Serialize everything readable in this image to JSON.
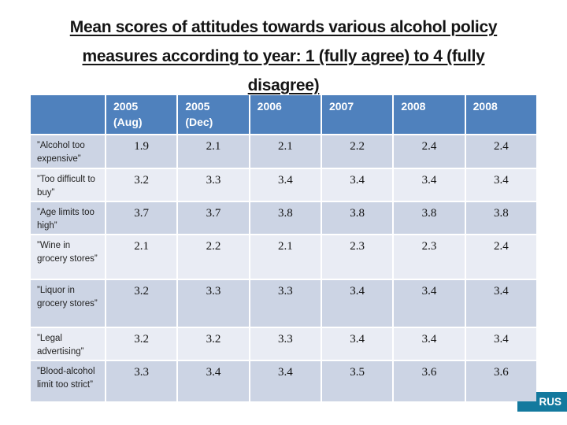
{
  "title": {
    "lines": [
      "Mean scores of attitudes towards various alcohol policy",
      "measures according to year: 1 (fully agree) to 4 (fully",
      "disagree)"
    ]
  },
  "table": {
    "headers": [
      "",
      "2005\n(Aug)",
      "2005\n(Dec)",
      "2006",
      "2007",
      "2008",
      "2008"
    ],
    "rows": [
      {
        "label": "”Alcohol too expensive”",
        "values": [
          "1.9",
          "2.1",
          "2.1",
          "2.2",
          "2.4",
          "2.4"
        ]
      },
      {
        "label": "”Too difficult to buy”",
        "values": [
          "3.2",
          "3.3",
          "3.4",
          "3.4",
          "3.4",
          "3.4"
        ]
      },
      {
        "label": "”Age limits too high”",
        "values": [
          "3.7",
          "3.7",
          "3.8",
          "3.8",
          "3.8",
          "3.8"
        ]
      },
      {
        "label": "”Wine in grocery stores”",
        "values": [
          "2.1",
          "2.2",
          "2.1",
          "2.3",
          "2.3",
          "2.4"
        ]
      },
      {
        "label": "”Liquor in grocery stores”",
        "values": [
          "3.2",
          "3.3",
          "3.3",
          "3.4",
          "3.4",
          "3.4"
        ]
      },
      {
        "label": "”Legal advertising”",
        "values": [
          "3.2",
          "3.2",
          "3.3",
          "3.4",
          "3.4",
          "3.4"
        ]
      },
      {
        "label": "”Blood-alcohol limit too strict”",
        "values": [
          "3.3",
          "3.4",
          "3.4",
          "3.5",
          "3.6",
          "3.6"
        ]
      }
    ]
  },
  "badge": {
    "label": "RUS"
  },
  "colors": {
    "header_bg": "#4f81bd",
    "band_dark": "#ccd4e4",
    "band_light": "#e9ecf4",
    "badge_bg": "#13799e",
    "title_text": "#151515"
  }
}
